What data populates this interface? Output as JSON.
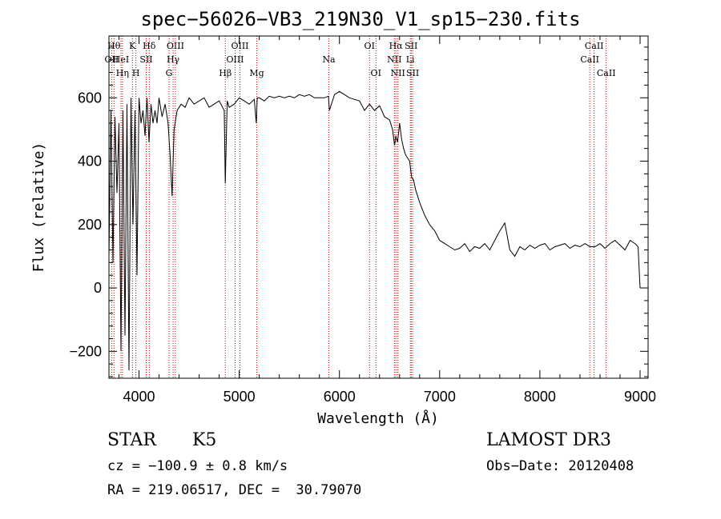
{
  "header": {
    "title": "spec−56026−VB3_219N30_V1_sp15−230.fits"
  },
  "info": {
    "object_class": "STAR",
    "subclass": "K5",
    "survey": "LAMOST DR3",
    "redshift": "cz = −100.9 ± 0.8 km/s",
    "obs_date": "Obs−Date: 20120408",
    "coords": "RA = 219.06517, DEC =  30.79070"
  },
  "chart_data": {
    "type": "line",
    "title": "spec−56026−VB3_219N30_V1_sp15−230.fits",
    "xlabel": "Wavelength (Å)",
    "ylabel": "Flux (relative)",
    "xlim": [
      3700,
      9080
    ],
    "ylim": [
      -285,
      795
    ],
    "x_ticks": [
      4000,
      5000,
      6000,
      7000,
      8000,
      9000
    ],
    "x_tick_labels": [
      "4000",
      "5000",
      "6000",
      "7000",
      "8000",
      "9000"
    ],
    "y_ticks": [
      -200,
      0,
      200,
      400,
      600
    ],
    "y_tick_labels": [
      "−200",
      "0",
      "200",
      "400",
      "600"
    ],
    "series": [
      {
        "name": "flux",
        "x": [
          3700,
          3720,
          3740,
          3760,
          3780,
          3800,
          3820,
          3840,
          3860,
          3880,
          3900,
          3920,
          3940,
          3960,
          3980,
          4000,
          4020,
          4040,
          4060,
          4080,
          4100,
          4120,
          4140,
          4160,
          4180,
          4200,
          4230,
          4260,
          4290,
          4310,
          4330,
          4350,
          4380,
          4420,
          4460,
          4500,
          4550,
          4600,
          4650,
          4700,
          4750,
          4800,
          4850,
          4861,
          4880,
          4900,
          4950,
          5000,
          5050,
          5100,
          5150,
          5170,
          5180,
          5200,
          5250,
          5300,
          5350,
          5400,
          5450,
          5500,
          5550,
          5600,
          5650,
          5700,
          5750,
          5800,
          5850,
          5890,
          5900,
          5950,
          6000,
          6050,
          6100,
          6150,
          6200,
          6250,
          6300,
          6350,
          6400,
          6450,
          6500,
          6530,
          6550,
          6563,
          6580,
          6600,
          6620,
          6640,
          6660,
          6680,
          6700,
          6720,
          6740,
          6760,
          6800,
          6850,
          6900,
          6950,
          7000,
          7050,
          7100,
          7150,
          7200,
          7250,
          7300,
          7350,
          7400,
          7450,
          7500,
          7550,
          7600,
          7650,
          7700,
          7750,
          7800,
          7850,
          7900,
          7950,
          8000,
          8050,
          8100,
          8150,
          8200,
          8250,
          8300,
          8350,
          8400,
          8450,
          8500,
          8550,
          8600,
          8650,
          8700,
          8750,
          8800,
          8850,
          8900,
          8950,
          8980,
          9000
        ],
        "values": [
          100,
          560,
          80,
          540,
          300,
          520,
          -200,
          560,
          -150,
          580,
          -260,
          600,
          200,
          560,
          40,
          600,
          520,
          560,
          480,
          600,
          460,
          580,
          520,
          560,
          520,
          600,
          540,
          580,
          520,
          420,
          290,
          500,
          560,
          580,
          570,
          600,
          580,
          590,
          600,
          570,
          580,
          590,
          560,
          330,
          590,
          570,
          580,
          600,
          590,
          580,
          595,
          520,
          600,
          600,
          590,
          605,
          600,
          605,
          600,
          605,
          600,
          610,
          605,
          610,
          600,
          600,
          600,
          605,
          560,
          610,
          620,
          610,
          600,
          595,
          590,
          560,
          580,
          560,
          575,
          540,
          530,
          500,
          450,
          480,
          460,
          520,
          470,
          440,
          420,
          410,
          400,
          350,
          340,
          310,
          270,
          230,
          200,
          180,
          150,
          140,
          130,
          120,
          125,
          140,
          115,
          130,
          125,
          140,
          120,
          150,
          180,
          205,
          120,
          100,
          130,
          120,
          135,
          125,
          135,
          140,
          120,
          130,
          135,
          140,
          125,
          135,
          130,
          140,
          130,
          130,
          140,
          125,
          140,
          150,
          135,
          120,
          150,
          140,
          130,
          0
        ]
      }
    ],
    "line_annotations": [
      {
        "label": "OII",
        "wavelength": 3727,
        "row": 1
      },
      {
        "label": "Hθ",
        "wavelength": 3750,
        "row": 0
      },
      {
        "label": "Hη",
        "wavelength": 3835,
        "row": 2
      },
      {
        "label": "HeI",
        "wavelength": 3820,
        "row": 1
      },
      {
        "label": "K",
        "wavelength": 3934,
        "row": 0
      },
      {
        "label": "H",
        "wavelength": 3969,
        "row": 2
      },
      {
        "label": "SII",
        "wavelength": 4072,
        "row": 1
      },
      {
        "label": "Hδ",
        "wavelength": 4102,
        "row": 0
      },
      {
        "label": "G",
        "wavelength": 4300,
        "row": 2
      },
      {
        "label": "Hγ",
        "wavelength": 4340,
        "row": 1
      },
      {
        "label": "OIII",
        "wavelength": 4363,
        "row": 0
      },
      {
        "label": "Hβ",
        "wavelength": 4861,
        "row": 2
      },
      {
        "label": "OIII",
        "wavelength": 4959,
        "row": 1
      },
      {
        "label": "OIII",
        "wavelength": 5007,
        "row": 0
      },
      {
        "label": "Mg",
        "wavelength": 5175,
        "row": 2
      },
      {
        "label": "Na",
        "wavelength": 5894,
        "row": 1
      },
      {
        "label": "OI",
        "wavelength": 6300,
        "row": 0
      },
      {
        "label": "OI",
        "wavelength": 6364,
        "row": 2
      },
      {
        "label": "NII",
        "wavelength": 6548,
        "row": 1
      },
      {
        "label": "Hα",
        "wavelength": 6563,
        "row": 0
      },
      {
        "label": "NII",
        "wavelength": 6583,
        "row": 2
      },
      {
        "label": "Li",
        "wavelength": 6707,
        "row": 1
      },
      {
        "label": "SII",
        "wavelength": 6716,
        "row": 0
      },
      {
        "label": "SII",
        "wavelength": 6731,
        "row": 2
      },
      {
        "label": "CaII",
        "wavelength": 8498,
        "row": 1
      },
      {
        "label": "CaII",
        "wavelength": 8542,
        "row": 0
      },
      {
        "label": "CaII",
        "wavelength": 8662,
        "row": 2
      }
    ]
  }
}
